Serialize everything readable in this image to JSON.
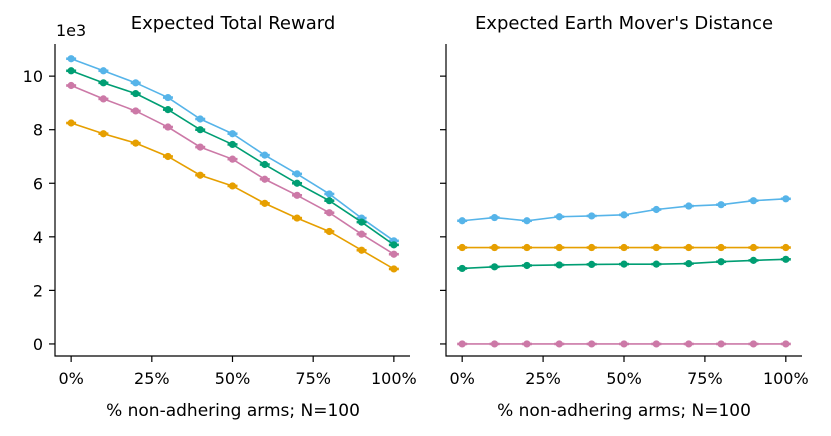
{
  "chart_data": [
    {
      "type": "line",
      "title": "Expected Total Reward",
      "xlabel": "% non-adhering arms; N=100",
      "ylabel": "",
      "y_multiplier_label": "1e3",
      "x": [
        0,
        10,
        20,
        30,
        40,
        50,
        60,
        70,
        80,
        90,
        100
      ],
      "xlim": [
        -5,
        105
      ],
      "ylim": [
        -0.45,
        11.2
      ],
      "xticks": [
        0,
        25,
        50,
        75,
        100
      ],
      "xtick_labels": [
        "0%",
        "25%",
        "50%",
        "75%",
        "100%"
      ],
      "yticks": [
        0,
        2,
        4,
        6,
        8,
        10
      ],
      "ytick_labels": [
        "0",
        "2",
        "4",
        "6",
        "8",
        "10"
      ],
      "show_ytick_labels": true,
      "grid": false,
      "series": [
        {
          "name": "blue",
          "color": "#56B4E9",
          "values": [
            10.65,
            10.2,
            9.75,
            9.2,
            8.4,
            7.85,
            7.05,
            6.35,
            5.6,
            4.7,
            3.85
          ]
        },
        {
          "name": "green",
          "color": "#009E73",
          "values": [
            10.2,
            9.75,
            9.35,
            8.75,
            8.0,
            7.45,
            6.7,
            6.0,
            5.35,
            4.55,
            3.7
          ]
        },
        {
          "name": "pink",
          "color": "#CC79A7",
          "values": [
            9.65,
            9.15,
            8.7,
            8.1,
            7.35,
            6.9,
            6.15,
            5.55,
            4.9,
            4.1,
            3.35
          ]
        },
        {
          "name": "orange",
          "color": "#E69F00",
          "values": [
            8.25,
            7.85,
            7.5,
            7.0,
            6.3,
            5.9,
            5.25,
            4.7,
            4.2,
            3.5,
            2.8
          ]
        }
      ]
    },
    {
      "type": "line",
      "title": "Expected Earth Mover's Distance",
      "xlabel": "% non-adhering arms; N=100",
      "ylabel": "",
      "x": [
        0,
        10,
        20,
        30,
        40,
        50,
        60,
        70,
        80,
        90,
        100
      ],
      "xlim": [
        -5,
        105
      ],
      "ylim": [
        -0.45,
        11.2
      ],
      "xticks": [
        0,
        25,
        50,
        75,
        100
      ],
      "xtick_labels": [
        "0%",
        "25%",
        "50%",
        "75%",
        "100%"
      ],
      "yticks": [
        0,
        2,
        4,
        6,
        8,
        10
      ],
      "show_ytick_labels": false,
      "grid": false,
      "series": [
        {
          "name": "blue",
          "color": "#56B4E9",
          "values": [
            4.6,
            4.72,
            4.6,
            4.75,
            4.78,
            4.82,
            5.02,
            5.15,
            5.2,
            5.35,
            5.42
          ]
        },
        {
          "name": "orange",
          "color": "#E69F00",
          "values": [
            3.6,
            3.6,
            3.6,
            3.6,
            3.6,
            3.6,
            3.6,
            3.6,
            3.6,
            3.6,
            3.6
          ]
        },
        {
          "name": "green",
          "color": "#009E73",
          "values": [
            2.82,
            2.88,
            2.93,
            2.95,
            2.97,
            2.98,
            2.98,
            3.0,
            3.07,
            3.12,
            3.16
          ]
        },
        {
          "name": "pink",
          "color": "#CC79A7",
          "values": [
            0.0,
            0.0,
            0.0,
            0.0,
            0.0,
            0.0,
            0.0,
            0.0,
            0.0,
            0.0,
            0.0
          ]
        }
      ]
    }
  ]
}
